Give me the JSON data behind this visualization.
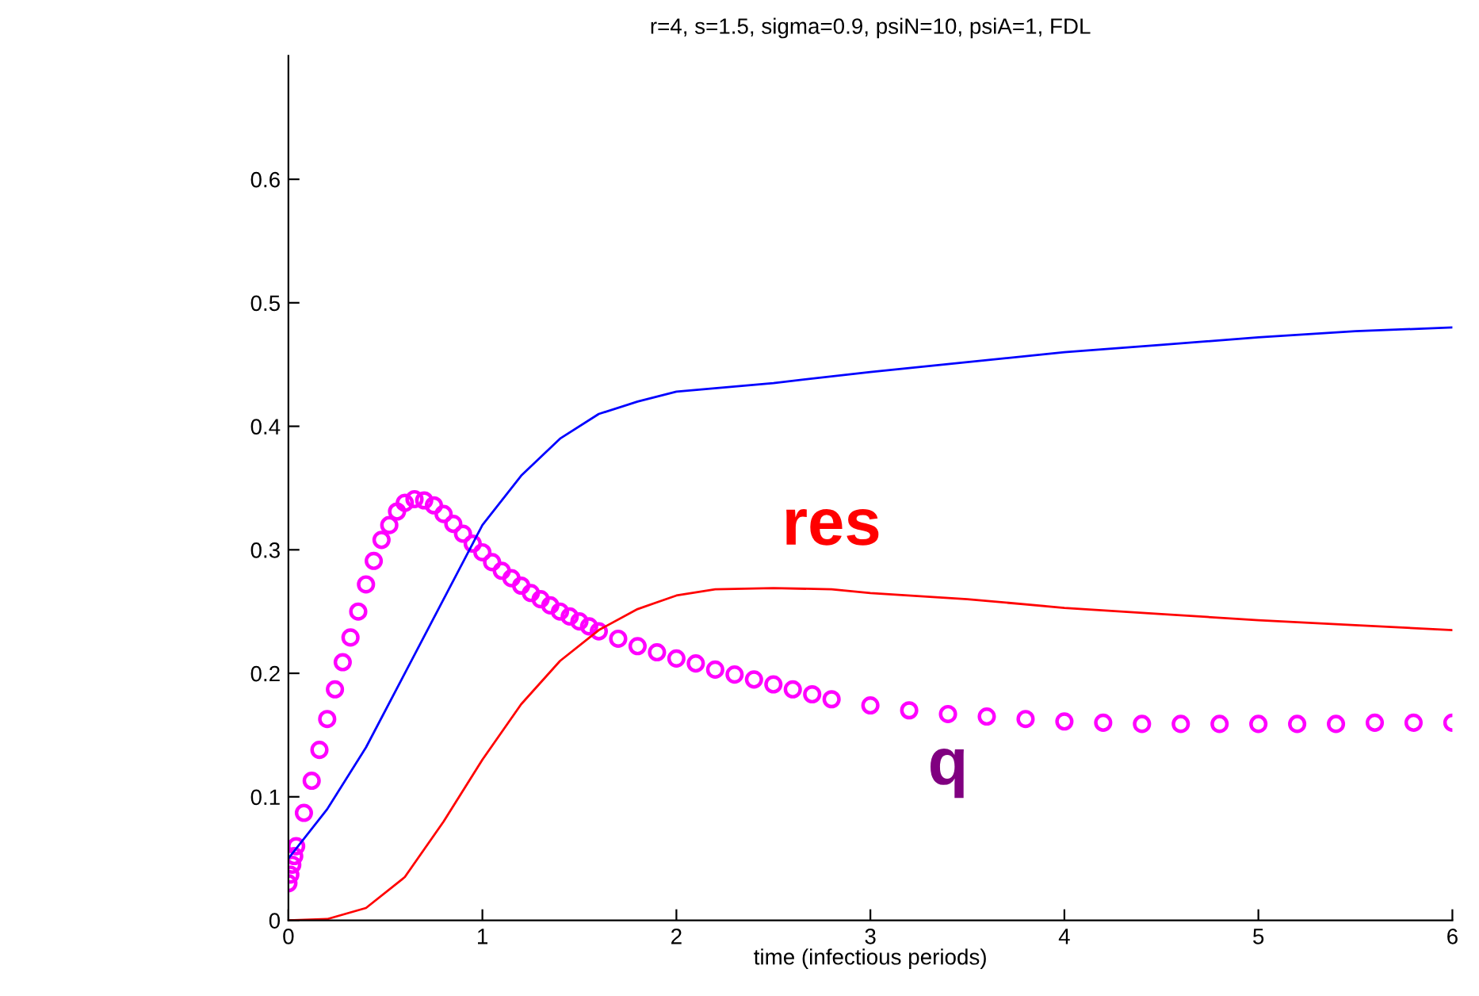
{
  "chart_data": {
    "type": "line",
    "title": "r=4, s=1.5, sigma=0.9, psiN=10, psiA=1, FDL",
    "xlabel": "time (infectious periods)",
    "xlim": [
      0,
      6
    ],
    "xticks": [
      0,
      1,
      2,
      3,
      4,
      5,
      6
    ],
    "ylim": [
      0,
      0.7
    ],
    "yticks": [
      0,
      0.1,
      0.2,
      0.3,
      0.4,
      0.5,
      0.6
    ],
    "grid": false,
    "series": [
      {
        "color": "#0000ff",
        "x": [
          0,
          0.2,
          0.4,
          0.6,
          0.8,
          1.0,
          1.2,
          1.4,
          1.6,
          1.8,
          2.0,
          2.5,
          3,
          3.5,
          4,
          4.5,
          5,
          5.5,
          6
        ],
        "values": [
          0.05,
          0.09,
          0.14,
          0.2,
          0.26,
          0.32,
          0.36,
          0.39,
          0.41,
          0.42,
          0.428,
          0.435,
          0.444,
          0.452,
          0.46,
          0.466,
          0.472,
          0.477,
          0.48
        ]
      },
      {
        "type": "line",
        "name": "res",
        "color": "#ff0000",
        "x": [
          0,
          0.2,
          0.4,
          0.6,
          0.8,
          1.0,
          1.2,
          1.4,
          1.6,
          1.8,
          2.0,
          2.2,
          2.5,
          2.8,
          3,
          3.5,
          4,
          4.5,
          5,
          5.5,
          6
        ],
        "values": [
          0,
          0.001,
          0.01,
          0.035,
          0.08,
          0.13,
          0.175,
          0.21,
          0.235,
          0.252,
          0.263,
          0.268,
          0.269,
          0.268,
          0.265,
          0.26,
          0.253,
          0.248,
          0.243,
          0.239,
          0.235
        ]
      },
      {
        "type": "scatter",
        "name": "q",
        "color": "#ff00ff",
        "marker": "circle",
        "x": [
          0,
          0.01,
          0.02,
          0.03,
          0.04,
          0.08,
          0.12,
          0.16,
          0.2,
          0.24,
          0.28,
          0.32,
          0.36,
          0.4,
          0.44,
          0.48,
          0.52,
          0.56,
          0.6,
          0.65,
          0.7,
          0.75,
          0.8,
          0.85,
          0.9,
          0.95,
          1.0,
          1.05,
          1.1,
          1.15,
          1.2,
          1.25,
          1.3,
          1.35,
          1.4,
          1.45,
          1.5,
          1.55,
          1.6,
          1.7,
          1.8,
          1.9,
          2.0,
          2.1,
          2.2,
          2.3,
          2.4,
          2.5,
          2.6,
          2.7,
          2.8,
          3.0,
          3.2,
          3.4,
          3.6,
          3.8,
          4.0,
          4.2,
          4.4,
          4.6,
          4.8,
          5.0,
          5.2,
          5.4,
          5.6,
          5.8,
          6.0
        ],
        "values": [
          0.03,
          0.037,
          0.045,
          0.052,
          0.06,
          0.087,
          0.113,
          0.138,
          0.163,
          0.187,
          0.209,
          0.229,
          0.25,
          0.272,
          0.291,
          0.308,
          0.32,
          0.331,
          0.338,
          0.341,
          0.34,
          0.336,
          0.329,
          0.321,
          0.313,
          0.305,
          0.298,
          0.29,
          0.283,
          0.277,
          0.271,
          0.265,
          0.26,
          0.255,
          0.25,
          0.246,
          0.242,
          0.238,
          0.234,
          0.228,
          0.222,
          0.217,
          0.212,
          0.208,
          0.203,
          0.199,
          0.195,
          0.191,
          0.187,
          0.183,
          0.179,
          0.174,
          0.17,
          0.167,
          0.165,
          0.163,
          0.161,
          0.16,
          0.159,
          0.159,
          0.159,
          0.159,
          0.159,
          0.159,
          0.16,
          0.16,
          0.16
        ]
      }
    ]
  }
}
